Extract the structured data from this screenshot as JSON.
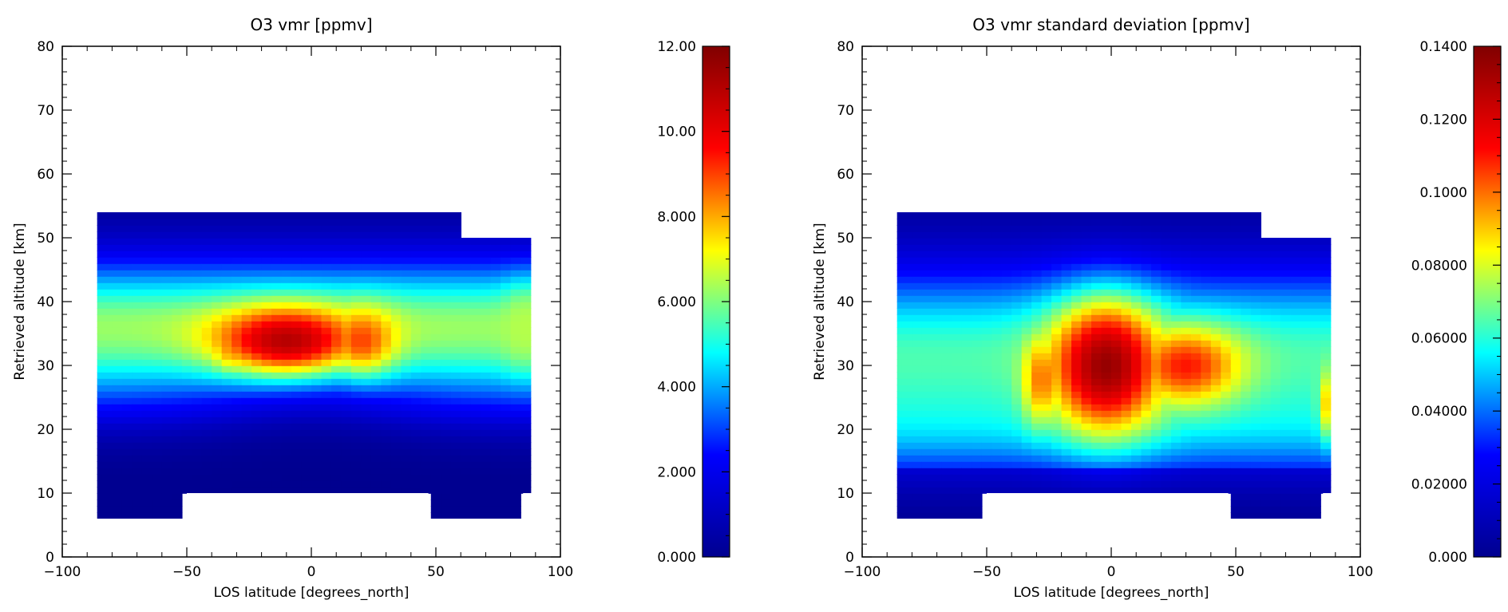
{
  "chart_data": [
    {
      "type": "heatmap",
      "title": "O3 vmr [ppmv]",
      "xlabel": "LOS latitude [degrees_north]",
      "ylabel": "Retrieved altitude [km]",
      "xlim": [
        -100,
        100
      ],
      "ylim": [
        0,
        80
      ],
      "xticks": [
        "−100",
        "−50",
        "0",
        "50",
        "100"
      ],
      "yticks": [
        "0",
        "10",
        "20",
        "30",
        "40",
        "50",
        "60",
        "70",
        "80"
      ],
      "colorbar": {
        "range": [
          0,
          12
        ],
        "ticks": [
          "0.000",
          "2.000",
          "4.000",
          "6.000",
          "8.000",
          "10.00",
          "12.00"
        ]
      },
      "colormap": [
        "#00008f",
        "#0000ff",
        "#00ffff",
        "#ffff00",
        "#ff0000",
        "#800000"
      ],
      "data_region_outline": [
        [
          -86,
          6
        ],
        [
          -50,
          6
        ],
        [
          -50,
          10
        ],
        [
          47,
          10
        ],
        [
          47,
          6
        ],
        [
          85,
          6
        ],
        [
          85,
          10
        ],
        [
          89,
          10
        ],
        [
          89,
          50
        ],
        [
          61,
          50
        ],
        [
          61,
          54
        ],
        [
          -86,
          54
        ]
      ],
      "field_features": [
        {
          "lat": -10,
          "alt": 34,
          "value": 11.0,
          "width_lat": 28,
          "width_alt": 5
        },
        {
          "lat": -30,
          "alt": 33,
          "value": 8.5,
          "width_lat": 12,
          "width_alt": 4
        },
        {
          "lat": 20,
          "alt": 34,
          "value": 9.0,
          "width_lat": 14,
          "width_alt": 5
        },
        {
          "lat": 85,
          "alt": 36,
          "value": 6.5,
          "width_lat": 8,
          "width_alt": 6
        }
      ]
    },
    {
      "type": "heatmap",
      "title": "O3 vmr standard deviation [ppmv]",
      "xlabel": "LOS latitude [degrees_north]",
      "ylabel": "Retrieved altitude [km]",
      "xlim": [
        -100,
        100
      ],
      "ylim": [
        0,
        80
      ],
      "xticks": [
        "−100",
        "−50",
        "0",
        "50",
        "100"
      ],
      "yticks": [
        "0",
        "10",
        "20",
        "30",
        "40",
        "50",
        "60",
        "70",
        "80"
      ],
      "colorbar": {
        "range": [
          0,
          0.14
        ],
        "ticks": [
          "0.000",
          "0.02000",
          "0.04000",
          "0.06000",
          "0.08000",
          "0.1000",
          "0.1200",
          "0.1400"
        ]
      },
      "colormap": [
        "#00008f",
        "#0000ff",
        "#00ffff",
        "#ffff00",
        "#ff0000",
        "#800000"
      ],
      "data_region_outline": [
        [
          -86,
          6
        ],
        [
          -50,
          6
        ],
        [
          -50,
          10
        ],
        [
          47,
          10
        ],
        [
          47,
          6
        ],
        [
          85,
          6
        ],
        [
          85,
          10
        ],
        [
          89,
          10
        ],
        [
          89,
          50
        ],
        [
          61,
          50
        ],
        [
          61,
          54
        ],
        [
          -86,
          54
        ]
      ],
      "field_features": [
        {
          "lat": -2,
          "alt": 30,
          "value": 0.135,
          "width_lat": 22,
          "width_alt": 10
        },
        {
          "lat": 30,
          "alt": 30,
          "value": 0.11,
          "width_lat": 22,
          "width_alt": 6
        },
        {
          "lat": -28,
          "alt": 28,
          "value": 0.1,
          "width_lat": 8,
          "width_alt": 7
        },
        {
          "lat": 88,
          "alt": 24,
          "value": 0.095,
          "width_lat": 4,
          "width_alt": 5
        }
      ]
    }
  ]
}
